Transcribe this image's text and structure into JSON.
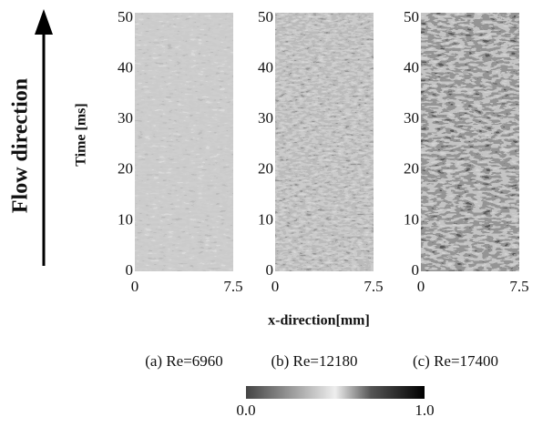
{
  "figure": {
    "flow_label": "Flow direction",
    "y_axis_label": "Time [ms]",
    "x_axis_label": "x-direction[mm]",
    "panels": [
      {
        "caption": "(a) Re=6960",
        "yticks": [
          0,
          10,
          20,
          30,
          40,
          50
        ],
        "xticks": [
          0,
          7.5
        ]
      },
      {
        "caption": "(b) Re=12180",
        "yticks": [
          0,
          10,
          20,
          30,
          40,
          50
        ],
        "xticks": [
          0,
          7.5
        ]
      },
      {
        "caption": "(c) Re=17400",
        "yticks": [
          0,
          10,
          20,
          30,
          40,
          50
        ],
        "xticks": [
          0,
          7.5
        ]
      }
    ],
    "colorbar": {
      "ticks": [
        {
          "value": 0,
          "label": "0.0"
        },
        {
          "value": 1,
          "label": "1.0"
        }
      ]
    }
  }
}
